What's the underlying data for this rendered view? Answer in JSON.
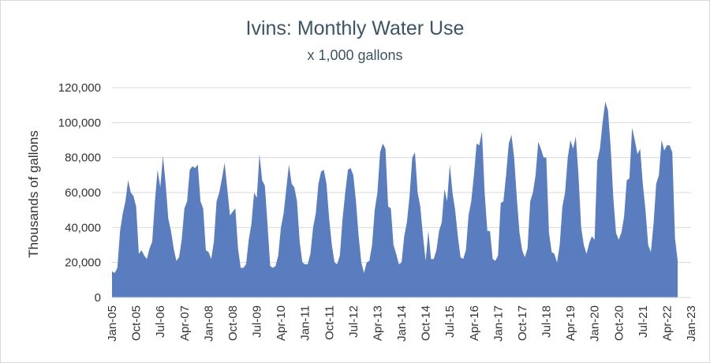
{
  "chart_data": {
    "type": "area",
    "title": "Ivins: Monthly Water Use",
    "subtitle": "x 1,000 gallons",
    "xlabel": "",
    "ylabel": "Thousands of gallons",
    "ylim": [
      0,
      120000
    ],
    "yticks": [
      "0",
      "20,000",
      "40,000",
      "60,000",
      "80,000",
      "100,000",
      "120,000"
    ],
    "ytick_values": [
      0,
      20000,
      40000,
      60000,
      80000,
      100000,
      120000
    ],
    "xticks": [
      "Jan-05",
      "Oct-05",
      "Jul-06",
      "Apr-07",
      "Jan-08",
      "Oct-08",
      "Jul-09",
      "Apr-10",
      "Jan-11",
      "Oct-11",
      "Jul-12",
      "Apr-13",
      "Jan-14",
      "Oct-14",
      "Jul-15",
      "Apr-16",
      "Jan-17",
      "Oct-17",
      "Jul-18",
      "Apr-19",
      "Jan-20",
      "Oct-20",
      "Jul-21",
      "Apr-22",
      "Jan-23"
    ],
    "x_start": "Jan-05",
    "grid": true,
    "color": "#5a7dbf",
    "series": [
      {
        "values": [
          15000,
          14000,
          17000,
          38000,
          48000,
          55000,
          67000,
          60000,
          58000,
          52000,
          25000,
          27000,
          24000,
          22000,
          28000,
          32000,
          55000,
          73000,
          63000,
          81000,
          65000,
          45000,
          38000,
          28000,
          21000,
          23000,
          33000,
          51000,
          55000,
          73000,
          75000,
          74000,
          76000,
          55000,
          51000,
          27000,
          26000,
          22000,
          32000,
          55000,
          60000,
          68000,
          77000,
          62000,
          47000,
          49000,
          51000,
          28000,
          17000,
          17000,
          19000,
          33000,
          42000,
          60000,
          57000,
          82000,
          67000,
          64000,
          42000,
          18000,
          17000,
          18000,
          24000,
          40000,
          48000,
          62000,
          76000,
          65000,
          63000,
          55000,
          32000,
          20000,
          19000,
          19000,
          25000,
          40000,
          48000,
          65000,
          72000,
          73000,
          65000,
          45000,
          30000,
          20000,
          19000,
          24000,
          45000,
          60000,
          73000,
          74000,
          70000,
          55000,
          35000,
          20000,
          14000,
          20000,
          21000,
          30000,
          50000,
          60000,
          83000,
          88000,
          85000,
          52000,
          51000,
          30000,
          25000,
          19000,
          20000,
          35000,
          43000,
          58000,
          80000,
          83000,
          60000,
          52000,
          35000,
          21000,
          38000,
          22000,
          22000,
          27000,
          38000,
          43000,
          62000,
          55000,
          76000,
          60000,
          50000,
          35000,
          23000,
          22000,
          27000,
          47000,
          55000,
          70000,
          88000,
          87000,
          95000,
          60000,
          38000,
          38000,
          22000,
          21000,
          24000,
          54000,
          55000,
          70000,
          88000,
          93000,
          80000,
          57000,
          37000,
          27000,
          23000,
          28000,
          55000,
          60000,
          70000,
          89000,
          85000,
          80000,
          80000,
          37000,
          26000,
          25000,
          20000,
          30000,
          52000,
          60000,
          80000,
          90000,
          85000,
          92000,
          70000,
          40000,
          30000,
          25000,
          31000,
          35000,
          33000,
          78000,
          85000,
          100000,
          112000,
          107000,
          86000,
          57000,
          37000,
          33000,
          37000,
          46000,
          67000,
          68000,
          97000,
          90000,
          82000,
          85000,
          65000,
          50000,
          30000,
          26000,
          42000,
          65000,
          70000,
          90000,
          84000,
          87000,
          87000,
          83000,
          34000,
          21000
        ]
      }
    ]
  }
}
